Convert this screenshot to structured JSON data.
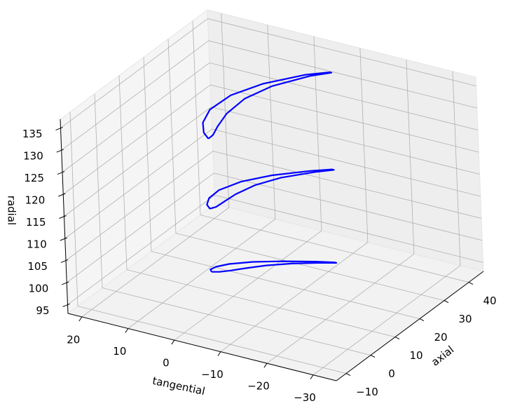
{
  "chart_data": {
    "type": "line3d",
    "xlabel": "tangential",
    "ylabel": "axial",
    "zlabel": "radial",
    "xlim": [
      -35,
      23
    ],
    "ylim": [
      -14,
      46
    ],
    "zlim": [
      93,
      137
    ],
    "xticks": [
      20,
      10,
      0,
      {
        "value": -10,
        "label": "−10"
      },
      {
        "value": -20,
        "label": "−20"
      },
      {
        "value": -30,
        "label": "−30"
      }
    ],
    "yticks": [
      {
        "value": -10,
        "label": "−10"
      },
      0,
      10,
      20,
      30,
      40
    ],
    "zticks": [
      95,
      100,
      105,
      110,
      115,
      120,
      125,
      130,
      135
    ],
    "grid": true,
    "series": [
      {
        "color": "#0000ff",
        "x": [
          1.9,
          2.6,
          2.3,
          0.8,
          -2.6,
          -7.2,
          -12.7,
          -15.9,
          -16.3,
          -13.7,
          -9.2,
          -5.6,
          -2.8,
          -0.9,
          0.6,
          1.9
        ],
        "y": [
          5.3,
          6.1,
          7.8,
          10.3,
          13.6,
          16.9,
          20.2,
          21.8,
          21.8,
          20.2,
          16.9,
          13.6,
          10.3,
          7.8,
          6.1,
          5.3
        ],
        "z": [
          100,
          100,
          100,
          100,
          100,
          100,
          100,
          100,
          100,
          100,
          100,
          100,
          100,
          100,
          100,
          100
        ]
      },
      {
        "color": "#0000ff",
        "x": [
          1.1,
          2.48,
          3.54,
          3.68,
          1.9,
          -1.68,
          -6.86,
          -10.1,
          -10.5,
          -7.86,
          -3.68,
          -1.1,
          0.08,
          0.34,
          0.48,
          1.1
        ],
        "y": [
          4.1,
          5.5,
          8.4,
          12.7,
          18.5,
          24.2,
          29.9,
          32.8,
          32.8,
          29.9,
          24.2,
          18.5,
          12.7,
          8.4,
          5.5,
          4.1
        ],
        "z": [
          115,
          115,
          115,
          115,
          115,
          115,
          115,
          115,
          115,
          115,
          115,
          115,
          115,
          115,
          115,
          115
        ]
      },
      {
        "color": "#0000ff",
        "x": [
          1.75,
          3.81,
          6.12,
          7.83,
          7.57,
          4.88,
          -0.05,
          -3.4,
          -3.8,
          -1.05,
          2.88,
          4.57,
          4.23,
          2.92,
          1.81,
          1.75
        ],
        "y": [
          5.8,
          7.8,
          11.8,
          17.9,
          25.9,
          33.9,
          42.0,
          45.5,
          45.5,
          42.0,
          33.9,
          25.9,
          17.9,
          11.8,
          7.8,
          5.8
        ],
        "z": [
          130,
          130,
          130,
          130,
          130,
          130,
          130,
          130,
          130,
          130,
          130,
          130,
          130,
          130,
          130,
          130
        ]
      }
    ]
  }
}
